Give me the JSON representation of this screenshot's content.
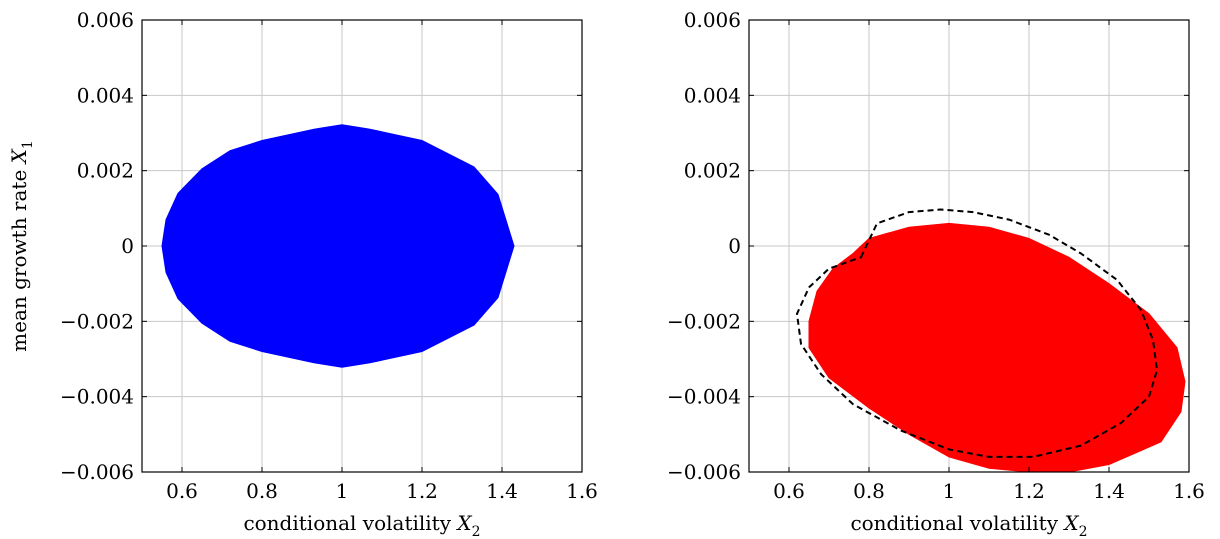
{
  "chart_data": [
    {
      "type": "area",
      "xlabel": {
        "text": "conditional volatility ",
        "var": "X",
        "sub": "2"
      },
      "ylabel": {
        "text": "mean growth rate ",
        "var": "X",
        "sub": "1"
      },
      "xlim": [
        0.5,
        1.6
      ],
      "ylim": [
        -0.006,
        0.006
      ],
      "xticks": [
        0.6,
        0.8,
        1,
        1.2,
        1.4,
        1.6
      ],
      "xtick_labels": [
        "0.6",
        "0.8",
        "1",
        "1.2",
        "1.4",
        "1.6"
      ],
      "yticks": [
        -0.006,
        -0.004,
        -0.002,
        0,
        0.002,
        0.004,
        0.006
      ],
      "ytick_labels": [
        "−0.006",
        "−0.004",
        "−0.002",
        "0",
        "0.002",
        "0.004",
        "0.006"
      ],
      "grid": true,
      "series": [
        {
          "style": "filled",
          "color": "#0000ff",
          "points": [
            [
              1.43,
              0
            ],
            [
              1.39,
              0.00137
            ],
            [
              1.33,
              0.0021
            ],
            [
              1.2,
              0.0028
            ],
            [
              1.07,
              0.0031
            ],
            [
              1.0,
              0.00322
            ],
            [
              0.93,
              0.0031
            ],
            [
              0.8,
              0.0028
            ],
            [
              0.72,
              0.00253
            ],
            [
              0.65,
              0.00205
            ],
            [
              0.59,
              0.0014
            ],
            [
              0.56,
              0.0007
            ],
            [
              0.55,
              0
            ],
            [
              0.56,
              -0.0007
            ],
            [
              0.59,
              -0.0014
            ],
            [
              0.65,
              -0.00205
            ],
            [
              0.72,
              -0.00253
            ],
            [
              0.8,
              -0.0028
            ],
            [
              0.93,
              -0.0031
            ],
            [
              1.0,
              -0.00322
            ],
            [
              1.07,
              -0.0031
            ],
            [
              1.2,
              -0.0028
            ],
            [
              1.33,
              -0.0021
            ],
            [
              1.39,
              -0.00137
            ],
            [
              1.43,
              0
            ]
          ]
        }
      ]
    },
    {
      "type": "area",
      "xlabel": {
        "text": "conditional volatility ",
        "var": "X",
        "sub": "2"
      },
      "ylabel": null,
      "xlim": [
        0.5,
        1.6
      ],
      "ylim": [
        -0.006,
        0.006
      ],
      "xticks": [
        0.6,
        0.8,
        1,
        1.2,
        1.4,
        1.6
      ],
      "xtick_labels": [
        "0.6",
        "0.8",
        "1",
        "1.2",
        "1.4",
        "1.6"
      ],
      "yticks": [
        -0.006,
        -0.004,
        -0.002,
        0,
        0.002,
        0.004,
        0.006
      ],
      "ytick_labels": [
        "−0.006",
        "−0.004",
        "−0.002",
        "0",
        "0.002",
        "0.004",
        "0.006"
      ],
      "grid": true,
      "series": [
        {
          "style": "filled",
          "color": "#ff0000",
          "points": [
            [
              0.8,
              0.0002
            ],
            [
              0.9,
              0.0005
            ],
            [
              1.0,
              0.0006
            ],
            [
              1.1,
              0.0005
            ],
            [
              1.2,
              0.0002
            ],
            [
              1.3,
              -0.0003
            ],
            [
              1.4,
              -0.001
            ],
            [
              1.5,
              -0.0018
            ],
            [
              1.57,
              -0.0027
            ],
            [
              1.59,
              -0.0036
            ],
            [
              1.58,
              -0.0044
            ],
            [
              1.53,
              -0.0052
            ],
            [
              1.4,
              -0.0058
            ],
            [
              1.3,
              -0.006
            ],
            [
              1.2,
              -0.006
            ],
            [
              1.1,
              -0.0059
            ],
            [
              1.0,
              -0.0056
            ],
            [
              0.9,
              -0.005
            ],
            [
              0.8,
              -0.0043
            ],
            [
              0.7,
              -0.0035
            ],
            [
              0.65,
              -0.0027
            ],
            [
              0.65,
              -0.002
            ],
            [
              0.67,
              -0.0012
            ],
            [
              0.71,
              -0.0006
            ],
            [
              0.76,
              -0.0002
            ],
            [
              0.8,
              0.0002
            ]
          ]
        },
        {
          "style": "dashed",
          "color": "#000000",
          "points": [
            [
              0.78,
              -0.0003
            ],
            [
              0.82,
              0.0006
            ],
            [
              0.9,
              0.0009
            ],
            [
              0.98,
              0.00097
            ],
            [
              1.06,
              0.0009
            ],
            [
              1.15,
              0.0007
            ],
            [
              1.25,
              0.0003
            ],
            [
              1.33,
              -0.0002
            ],
            [
              1.42,
              -0.0009
            ],
            [
              1.48,
              -0.0017
            ],
            [
              1.51,
              -0.0025
            ],
            [
              1.52,
              -0.0033
            ],
            [
              1.5,
              -0.004
            ],
            [
              1.43,
              -0.0047
            ],
            [
              1.33,
              -0.0053
            ],
            [
              1.21,
              -0.0056
            ],
            [
              1.1,
              -0.0056
            ],
            [
              1.0,
              -0.0054
            ],
            [
              0.88,
              -0.0049
            ],
            [
              0.76,
              -0.0042
            ],
            [
              0.68,
              -0.0034
            ],
            [
              0.63,
              -0.0026
            ],
            [
              0.62,
              -0.0018
            ],
            [
              0.65,
              -0.0011
            ],
            [
              0.7,
              -0.0006
            ],
            [
              0.78,
              -0.0003
            ]
          ]
        }
      ]
    }
  ]
}
